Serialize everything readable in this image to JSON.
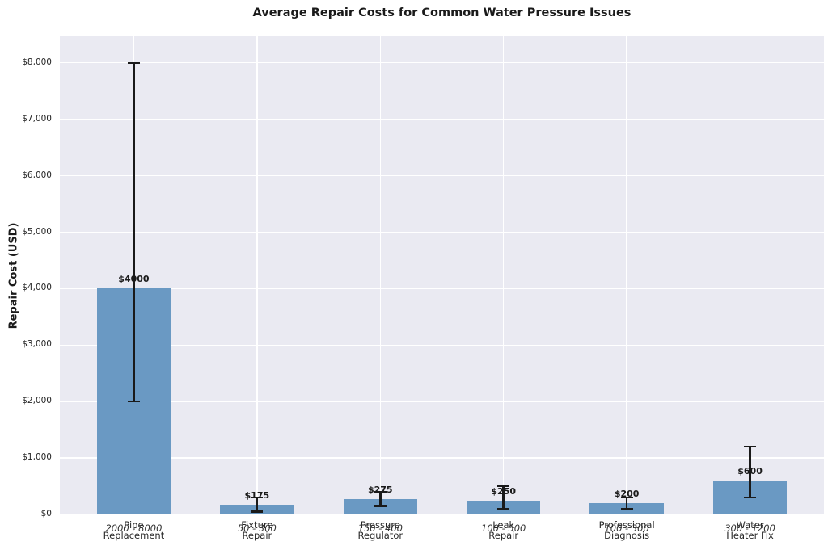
{
  "chart_data": {
    "type": "bar",
    "title": "Average Repair Costs for Common Water Pressure Issues",
    "xlabel": "",
    "ylabel": "Repair Cost (USD)",
    "categories": [
      "Pipe\nReplacement",
      "Fixture\nRepair",
      "Pressure\nRegulator",
      "Leak\nRepair",
      "Professional\nDiagnosis",
      "Water\nHeater Fix"
    ],
    "values": [
      4000,
      175,
      275,
      250,
      200,
      600
    ],
    "error_low": [
      2000,
      50,
      150,
      100,
      100,
      300
    ],
    "error_high": [
      8000,
      300,
      400,
      500,
      300,
      1200
    ],
    "bar_value_labels": [
      "$4000",
      "$175",
      "$275",
      "$250",
      "$200",
      "$600"
    ],
    "range_annotations": [
      "2000 - 8000",
      "50 - 300",
      "150 - 400",
      "100 - 500",
      "100 - 300",
      "300 - 1200"
    ],
    "y_tick_values": [
      0,
      1000,
      2000,
      3000,
      4000,
      5000,
      6000,
      7000,
      8000
    ],
    "y_tick_labels": [
      "$0",
      "$1,000",
      "$2,000",
      "$3,000",
      "$4,000",
      "$5,000",
      "$6,000",
      "$7,000",
      "$8,000"
    ],
    "ylim": [
      0,
      8470
    ],
    "xlim": [
      -0.6,
      5.6
    ],
    "bar_width_units": 0.6,
    "value_label_offset": 150,
    "grid": true,
    "legend": false,
    "colors": {
      "bar": "#6a99c3",
      "plot_bg": "#eaeaf2",
      "grid": "#ffffff",
      "error_bar": "#1a1a1a",
      "text": "#262626",
      "figure_bg": "#ffffff"
    }
  }
}
